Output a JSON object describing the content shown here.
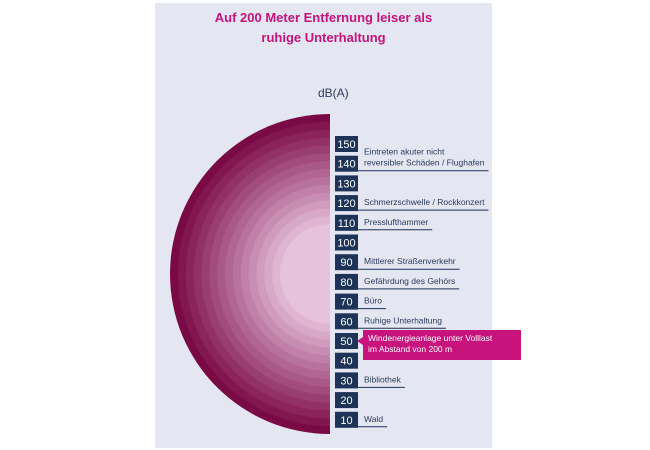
{
  "chart_data": {
    "type": "semicircle-scale",
    "title_lines": [
      "Auf 200 Meter Entfernung leiser als",
      "ruhige Unterhaltung"
    ],
    "unit": "dB(A)",
    "levels": [
      150,
      140,
      130,
      120,
      110,
      100,
      90,
      80,
      70,
      60,
      50,
      40,
      30,
      20,
      10
    ],
    "annotations": [
      {
        "level": 150,
        "lines": [
          "Eintreten akuter nicht",
          "reversibler Schäden / Flughafen"
        ]
      },
      {
        "level": 120,
        "lines": [
          "Schmerzschwelle / Rockkonzert"
        ]
      },
      {
        "level": 110,
        "lines": [
          "Presslufthammer"
        ]
      },
      {
        "level": 90,
        "lines": [
          "Mittlerer Straßenverkehr"
        ]
      },
      {
        "level": 80,
        "lines": [
          "Gefährdung des Gehörs"
        ]
      },
      {
        "level": 70,
        "lines": [
          "Büro"
        ]
      },
      {
        "level": 60,
        "lines": [
          "Ruhige Unterhaltung"
        ]
      },
      {
        "level": 50,
        "lines": [
          "Windenergieanlage unter Volllast",
          "im Abstand von 200 m"
        ],
        "highlight": true
      },
      {
        "level": 30,
        "lines": [
          "Bibliothek"
        ]
      },
      {
        "level": 10,
        "lines": [
          "Wald"
        ]
      }
    ],
    "colors": {
      "ring_dark": "#7a0a45",
      "ring_light": "#e7c2dd",
      "box": "#1d3357",
      "highlight": "#c8127c",
      "label_text": "#2a3a5e"
    }
  }
}
